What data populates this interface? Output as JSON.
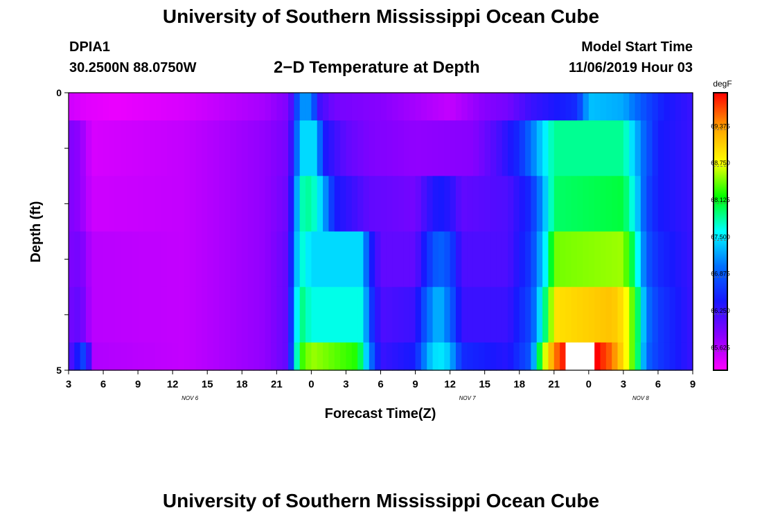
{
  "header": {
    "title": "University of Southern Mississippi Ocean Cube",
    "station_id": "DPIA1",
    "station_coords": "30.2500N 88.0750W",
    "plot_title": "2−D Temperature at Depth",
    "model_start_label": "Model Start Time",
    "model_start_value": "11/06/2019 Hour 03"
  },
  "footer": {
    "title": "University of Southern Mississippi Ocean Cube"
  },
  "colors": {
    "background": "#ffffff",
    "text": "#000000",
    "colormap": [
      "#ff00ff",
      "#8a00ff",
      "#1818ff",
      "#0070ff",
      "#00ffff",
      "#00ff00",
      "#ffff00",
      "#ffa000",
      "#ff0000"
    ]
  },
  "chart_data": {
    "type": "heatmap",
    "title": "2−D Temperature at Depth",
    "xlabel": "Forecast Time(Z)",
    "ylabel": "Depth (ft)",
    "x_tick_labels": [
      "3",
      "6",
      "9",
      "12",
      "15",
      "18",
      "21",
      "0",
      "3",
      "6",
      "9",
      "12",
      "15",
      "18",
      "21",
      "0",
      "3",
      "6",
      "9"
    ],
    "x_date_labels": [
      {
        "label": "NOV 6",
        "tick_index": 3
      },
      {
        "label": "NOV 7",
        "tick_index": 11
      },
      {
        "label": "NOV 8",
        "tick_index": 16
      }
    ],
    "x_range_hours": [
      0,
      54
    ],
    "y_tick_labels": [
      {
        "label": "0",
        "depth": 0
      },
      {
        "label": "",
        "depth": 1
      },
      {
        "label": "",
        "depth": 2
      },
      {
        "label": "",
        "depth": 3
      },
      {
        "label": "",
        "depth": 4
      },
      {
        "label": "5",
        "depth": 5
      }
    ],
    "y_range_ft": [
      0,
      5
    ],
    "depth_levels": [
      0.25,
      1.0,
      2.0,
      3.0,
      4.0,
      4.75
    ],
    "depth_bands": [
      [
        0,
        0.5
      ],
      [
        0.5,
        1.5
      ],
      [
        1.5,
        2.5
      ],
      [
        2.5,
        3.5
      ],
      [
        3.5,
        4.5
      ],
      [
        4.5,
        5
      ]
    ],
    "colorbar": {
      "unit": "degF",
      "min": 65.3,
      "max": 70.0,
      "tick_values": [
        65.625,
        66.25,
        66.875,
        67.5,
        68.125,
        68.75,
        69.375
      ],
      "tick_labels": [
        "65.625",
        "66.250",
        "66.875",
        "67.500",
        "68.125",
        "68.750",
        "69.375"
      ]
    },
    "keypoints_degF": [
      [
        [
          0,
          65.55
        ],
        [
          1.5,
          65.45
        ],
        [
          4,
          65.4
        ],
        [
          10,
          65.5
        ],
        [
          17,
          65.75
        ],
        [
          19,
          65.95
        ],
        [
          19.5,
          66.4
        ],
        [
          20,
          67.2
        ],
        [
          21,
          67.2
        ],
        [
          21.6,
          66.3
        ],
        [
          23,
          66.0
        ],
        [
          27,
          65.9
        ],
        [
          33,
          65.6
        ],
        [
          36,
          65.9
        ],
        [
          38,
          66.0
        ],
        [
          40,
          66.3
        ],
        [
          44,
          66.6
        ],
        [
          45,
          67.4
        ],
        [
          48,
          67.3
        ],
        [
          50,
          66.8
        ],
        [
          51.5,
          66.5
        ],
        [
          54,
          66.3
        ]
      ],
      [
        [
          0,
          65.95
        ],
        [
          1,
          65.85
        ],
        [
          2,
          65.5
        ],
        [
          10,
          65.6
        ],
        [
          17,
          65.85
        ],
        [
          19,
          66.0
        ],
        [
          19.5,
          66.6
        ],
        [
          20,
          67.5
        ],
        [
          21.5,
          67.5
        ],
        [
          22,
          66.5
        ],
        [
          24,
          66.1
        ],
        [
          26,
          65.95
        ],
        [
          30,
          65.85
        ],
        [
          35,
          65.9
        ],
        [
          37,
          66.2
        ],
        [
          39,
          66.6
        ],
        [
          41,
          67.5
        ],
        [
          42,
          67.9
        ],
        [
          48,
          67.9
        ],
        [
          49,
          67.4
        ],
        [
          50,
          66.9
        ],
        [
          51,
          66.5
        ],
        [
          54,
          66.3
        ]
      ],
      [
        [
          0,
          65.95
        ],
        [
          1,
          65.85
        ],
        [
          2,
          65.55
        ],
        [
          10,
          65.6
        ],
        [
          17,
          65.85
        ],
        [
          19,
          66.05
        ],
        [
          19.5,
          66.8
        ],
        [
          20,
          67.8
        ],
        [
          21,
          67.9
        ],
        [
          22,
          67.4
        ],
        [
          23,
          66.5
        ],
        [
          26,
          66.1
        ],
        [
          30,
          66.0
        ],
        [
          31,
          66.3
        ],
        [
          32,
          66.5
        ],
        [
          33,
          66.4
        ],
        [
          34,
          66.1
        ],
        [
          38,
          66.2
        ],
        [
          40,
          66.6
        ],
        [
          41.5,
          67.6
        ],
        [
          42,
          68.0
        ],
        [
          48,
          68.1
        ],
        [
          49,
          67.6
        ],
        [
          50,
          66.8
        ],
        [
          51,
          66.5
        ],
        [
          54,
          66.3
        ]
      ],
      [
        [
          0,
          65.95
        ],
        [
          1,
          66.0
        ],
        [
          2,
          65.65
        ],
        [
          10,
          65.6
        ],
        [
          17,
          65.85
        ],
        [
          19,
          66.1
        ],
        [
          19.5,
          67.0
        ],
        [
          20,
          67.8
        ],
        [
          21,
          67.5
        ],
        [
          25.5,
          67.5
        ],
        [
          26,
          66.6
        ],
        [
          27,
          66.1
        ],
        [
          30,
          66.1
        ],
        [
          31,
          66.6
        ],
        [
          32,
          67.0
        ],
        [
          33,
          66.8
        ],
        [
          34,
          66.2
        ],
        [
          38,
          66.2
        ],
        [
          40,
          66.7
        ],
        [
          41.5,
          67.8
        ],
        [
          42,
          68.5
        ],
        [
          48,
          68.6
        ],
        [
          49,
          67.9
        ],
        [
          50,
          66.9
        ],
        [
          51,
          66.6
        ],
        [
          54,
          66.3
        ]
      ],
      [
        [
          0,
          66.0
        ],
        [
          1,
          66.1
        ],
        [
          2,
          65.65
        ],
        [
          10,
          65.6
        ],
        [
          17,
          65.85
        ],
        [
          19,
          66.1
        ],
        [
          19.5,
          67.2
        ],
        [
          20,
          68.0
        ],
        [
          21,
          67.7
        ],
        [
          25.5,
          67.7
        ],
        [
          26,
          66.8
        ],
        [
          27,
          66.2
        ],
        [
          30,
          66.3
        ],
        [
          31,
          67.0
        ],
        [
          32,
          67.4
        ],
        [
          33,
          67.0
        ],
        [
          34,
          66.3
        ],
        [
          38,
          66.3
        ],
        [
          40,
          66.8
        ],
        [
          41.5,
          68.2
        ],
        [
          42,
          69.0
        ],
        [
          47,
          69.2
        ],
        [
          48,
          69.0
        ],
        [
          49,
          68.3
        ],
        [
          50,
          67.1
        ],
        [
          51,
          66.7
        ],
        [
          54,
          66.3
        ]
      ],
      [
        [
          0,
          66.1
        ],
        [
          1,
          66.6
        ],
        [
          1.5,
          66.9
        ],
        [
          2,
          65.7
        ],
        [
          10,
          65.6
        ],
        [
          17,
          65.85
        ],
        [
          19,
          66.1
        ],
        [
          19.5,
          67.3
        ],
        [
          20,
          68.3
        ],
        [
          21,
          68.6
        ],
        [
          25,
          68.3
        ],
        [
          26,
          67.2
        ],
        [
          27,
          66.3
        ],
        [
          30,
          66.5
        ],
        [
          31,
          67.3
        ],
        [
          32,
          67.6
        ],
        [
          33,
          67.4
        ],
        [
          34,
          66.6
        ],
        [
          38,
          66.4
        ],
        [
          40,
          66.9
        ],
        [
          41,
          68.5
        ],
        [
          42,
          69.5
        ],
        [
          43,
          70.0
        ],
        [
          43.5,
          70.5
        ],
        [
          44.5,
          70.5
        ],
        [
          46,
          69.9
        ],
        [
          47,
          69.6
        ],
        [
          48,
          69.0
        ],
        [
          49,
          68.3
        ],
        [
          50,
          67.0
        ],
        [
          51,
          66.7
        ],
        [
          54,
          66.3
        ]
      ]
    ]
  }
}
